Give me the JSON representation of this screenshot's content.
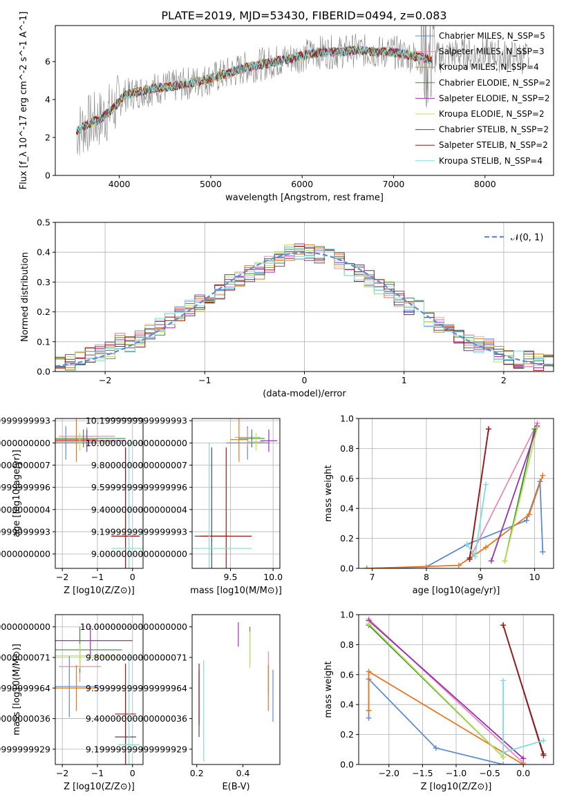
{
  "title": "PLATE=2019, MJD=53430, FIBERID=0494, z=0.083",
  "colors": {
    "chabrier_miles": "#5b8ad6",
    "salpeter_miles": "#e88ab8",
    "kroupa_miles": "#e8761f",
    "chabrier_elodie": "#3a8a3a",
    "salpeter_elodie": "#9a2fb0",
    "kroupa_elodie": "#bde05a",
    "chabrier_stelib": "#4a4a4a",
    "salpeter_stelib": "#a01818",
    "kroupa_stelib": "#7adede",
    "data": "#808080",
    "gaussian": "#5b8ad6"
  },
  "chart_data": [
    {
      "id": "spectrum",
      "type": "line",
      "xlabel": "wavelength [Angstrom, rest frame]",
      "ylabel": "Flux [f_λ 10^-17 erg cm^-2 s^-1 A^-1]",
      "xlim": [
        3300,
        8750
      ],
      "ylim": [
        0,
        7.9
      ],
      "xticks": [
        4000,
        5000,
        6000,
        7000,
        8000
      ],
      "yticks": [
        0,
        2,
        4,
        6
      ],
      "legend_position": "upper-right",
      "legend": [
        {
          "key": "chabrier_miles",
          "label": "Chabrier MILES, N_SSP=5"
        },
        {
          "key": "salpeter_miles",
          "label": "Salpeter MILES, N_SSP=3"
        },
        {
          "key": "kroupa_miles",
          "label": "Kroupa MILES, N_SSP=4"
        },
        {
          "key": "chabrier_elodie",
          "label": "Chabrier ELODIE, N_SSP=2"
        },
        {
          "key": "salpeter_elodie",
          "label": "Salpeter ELODIE, N_SSP=2"
        },
        {
          "key": "kroupa_elodie",
          "label": "Kroupa ELODIE, N_SSP=2"
        },
        {
          "key": "chabrier_stelib",
          "label": "Chabrier STELIB, N_SSP=2"
        },
        {
          "key": "salpeter_stelib",
          "label": "Salpeter STELIB, N_SSP=2"
        },
        {
          "key": "kroupa_stelib",
          "label": "Kroupa STELIB, N_SSP=4"
        }
      ],
      "continuum": [
        [
          3530,
          2.3
        ],
        [
          3650,
          2.7
        ],
        [
          3800,
          3.0
        ],
        [
          3950,
          3.6
        ],
        [
          4050,
          4.2
        ],
        [
          4200,
          4.4
        ],
        [
          4400,
          4.6
        ],
        [
          4600,
          4.7
        ],
        [
          4800,
          4.9
        ],
        [
          5000,
          5.1
        ],
        [
          5200,
          5.4
        ],
        [
          5400,
          5.7
        ],
        [
          5600,
          5.9
        ],
        [
          5800,
          6.1
        ],
        [
          6000,
          6.3
        ],
        [
          6200,
          6.5
        ],
        [
          6400,
          6.5
        ],
        [
          6600,
          6.6
        ],
        [
          6800,
          6.5
        ],
        [
          7000,
          6.5
        ],
        [
          7200,
          6.3
        ],
        [
          7420,
          6.1
        ],
        [
          7600,
          6.4
        ],
        [
          7800,
          6.4
        ],
        [
          8000,
          6.4
        ],
        [
          8200,
          6.3
        ],
        [
          8400,
          6.2
        ],
        [
          8480,
          6.2
        ]
      ]
    },
    {
      "id": "residuals",
      "type": "line",
      "xlabel": "(data-model)/error",
      "ylabel": "Normed distribution",
      "xlim": [
        -2.5,
        2.5
      ],
      "ylim": [
        0,
        0.5
      ],
      "xticks": [
        -2,
        -1,
        0,
        1,
        2
      ],
      "yticks": [
        0.0,
        0.1,
        0.2,
        0.3,
        0.4,
        0.5
      ],
      "grid": true,
      "legend_position": "upper-right",
      "legend": [
        {
          "key": "gaussian",
          "label": "𝒩(0, 1)"
        }
      ],
      "bin_width": 0.1,
      "bin_start": -2.5,
      "model_histogram": [
        0.03,
        0.03,
        0.04,
        0.06,
        0.06,
        0.07,
        0.1,
        0.09,
        0.11,
        0.13,
        0.15,
        0.17,
        0.2,
        0.21,
        0.23,
        0.25,
        0.27,
        0.3,
        0.31,
        0.33,
        0.34,
        0.36,
        0.38,
        0.4,
        0.4,
        0.4,
        0.39,
        0.39,
        0.37,
        0.35,
        0.33,
        0.31,
        0.29,
        0.27,
        0.24,
        0.22,
        0.21,
        0.18,
        0.16,
        0.14,
        0.12,
        0.1,
        0.09,
        0.08,
        0.06,
        0.05,
        0.04,
        0.04,
        0.03,
        0.03
      ]
    },
    {
      "id": "age-vs-Z",
      "type": "scatter",
      "xlabel": "Z [log10(Z/Z⊙)]",
      "ylabel": "age [log10(age/yr)]",
      "xlim": [
        -2.2,
        0.3
      ],
      "ylim": [
        8.87,
        10.22
      ],
      "xticks": [
        -2,
        -1,
        0
      ],
      "yticks": [
        9.0,
        9.2,
        9.4,
        9.6,
        9.8,
        10.0,
        10.2
      ],
      "grid": true,
      "points": [
        {
          "key": "chabrier_miles",
          "x": -1.9,
          "y": 10.0,
          "xerr": 0.9,
          "yerr": 0.15
        },
        {
          "key": "salpeter_miles",
          "x": -1.3,
          "y": 10.06,
          "xerr": 0.8,
          "yerr": 0.08
        },
        {
          "key": "kroupa_miles",
          "x": -1.6,
          "y": 10.03,
          "xerr": 0.6,
          "yerr": 0.2
        },
        {
          "key": "chabrier_elodie",
          "x": -1.4,
          "y": 10.04,
          "xerr": 1.2,
          "yerr": 0.08
        },
        {
          "key": "salpeter_elodie",
          "x": -1.3,
          "y": 10.02,
          "xerr": 1.1,
          "yerr": 0.1
        },
        {
          "key": "kroupa_elodie",
          "x": -1.5,
          "y": 10.01,
          "xerr": 1.0,
          "yerr": 0.08
        },
        {
          "key": "chabrier_stelib",
          "x": -0.2,
          "y": 9.16,
          "xerr": 0.4,
          "yerr": 0.8
        },
        {
          "key": "salpeter_stelib",
          "x": -0.2,
          "y": 9.16,
          "xerr": 0.4,
          "yerr": 0.8
        },
        {
          "key": "kroupa_stelib",
          "x": -0.1,
          "y": 9.05,
          "xerr": 0.5,
          "yerr": 0.95
        }
      ]
    },
    {
      "id": "age-vs-mass",
      "type": "scatter",
      "xlabel": "mass [log10(M/M⊙)]",
      "ylabel": "",
      "xlim": [
        9.05,
        10.08
      ],
      "ylim": [
        8.87,
        10.22
      ],
      "xticks": [
        9.5,
        10.0
      ],
      "yticks": [
        9.0,
        9.2,
        9.4,
        9.6,
        9.8,
        10.0,
        10.2
      ],
      "grid": true,
      "points": [
        {
          "key": "chabrier_miles",
          "x": 9.7,
          "y": 10.0,
          "xerr": 0.25,
          "yerr": 0.15
        },
        {
          "key": "salpeter_miles",
          "x": 9.7,
          "y": 10.05,
          "xerr": 0.15,
          "yerr": 0.08
        },
        {
          "key": "kroupa_miles",
          "x": 9.6,
          "y": 10.03,
          "xerr": 0.1,
          "yerr": 0.2
        },
        {
          "key": "chabrier_elodie",
          "x": 9.75,
          "y": 10.04,
          "xerr": 0.15,
          "yerr": 0.08
        },
        {
          "key": "salpeter_elodie",
          "x": 9.95,
          "y": 10.02,
          "xerr": 0.1,
          "yerr": 0.1
        },
        {
          "key": "kroupa_elodie",
          "x": 9.8,
          "y": 10.01,
          "xerr": 0.1,
          "yerr": 0.08
        },
        {
          "key": "chabrier_stelib",
          "x": 9.28,
          "y": 9.16,
          "xerr": 0.2,
          "yerr": 0.8
        },
        {
          "key": "salpeter_stelib",
          "x": 9.45,
          "y": 9.16,
          "xerr": 0.3,
          "yerr": 0.8
        },
        {
          "key": "kroupa_stelib",
          "x": 9.25,
          "y": 9.05,
          "xerr": 0.5,
          "yerr": 0.95
        }
      ]
    },
    {
      "id": "massweight-vs-age",
      "type": "line",
      "xlabel": "age [log10(age/yr)]",
      "ylabel": "mass weight",
      "xlim": [
        6.75,
        10.35
      ],
      "ylim": [
        0,
        1
      ],
      "xticks": [
        7,
        8,
        9,
        10
      ],
      "yticks": [
        0.0,
        0.2,
        0.4,
        0.6,
        0.8,
        1.0
      ],
      "grid": true,
      "series": [
        {
          "key": "chabrier_miles",
          "x": [
            6.9,
            8.0,
            8.75,
            9.85,
            10.1,
            10.15
          ],
          "y": [
            0.0,
            0.01,
            0.16,
            0.32,
            0.58,
            0.11
          ]
        },
        {
          "key": "salpeter_miles",
          "x": [
            8.85,
            10.05
          ],
          "y": [
            0.1,
            0.97
          ]
        },
        {
          "key": "kroupa_miles",
          "x": [
            6.9,
            8.6,
            9.1,
            9.9,
            10.15
          ],
          "y": [
            0.0,
            0.02,
            0.14,
            0.36,
            0.62
          ]
        },
        {
          "key": "chabrier_elodie",
          "x": [
            9.45,
            10.0
          ],
          "y": [
            0.05,
            0.93
          ]
        },
        {
          "key": "salpeter_elodie",
          "x": [
            9.2,
            10.05
          ],
          "y": [
            0.05,
            0.95
          ]
        },
        {
          "key": "kroupa_elodie",
          "x": [
            9.45,
            10.05
          ],
          "y": [
            0.05,
            0.94
          ]
        },
        {
          "key": "chabrier_stelib",
          "x": [
            8.8,
            9.15
          ],
          "y": [
            0.07,
            0.93
          ]
        },
        {
          "key": "salpeter_stelib",
          "x": [
            8.8,
            9.15
          ],
          "y": [
            0.06,
            0.93
          ]
        },
        {
          "key": "kroupa_stelib",
          "x": [
            8.75,
            8.9,
            9.1
          ],
          "y": [
            0.16,
            0.08,
            0.56
          ]
        }
      ]
    },
    {
      "id": "mass-vs-Z",
      "type": "scatter",
      "xlabel": "Z [log10(Z/Z⊙)]",
      "ylabel": "mass [log10(M/M⊙)]",
      "xlim": [
        -2.2,
        0.3
      ],
      "ylim": [
        9.1,
        10.08
      ],
      "xticks": [
        -2,
        -1,
        0
      ],
      "yticks": [
        9.2,
        9.4,
        9.6,
        9.8,
        10.0
      ],
      "grid": true,
      "points": [
        {
          "key": "chabrier_miles",
          "x": -1.8,
          "y": 9.61,
          "xerr": 0.9,
          "yerr": 0.2
        },
        {
          "key": "salpeter_miles",
          "x": -1.5,
          "y": 9.74,
          "xerr": 0.6,
          "yerr": 0.1
        },
        {
          "key": "kroupa_miles",
          "x": -1.6,
          "y": 9.6,
          "xerr": 0.6,
          "yerr": 0.15
        },
        {
          "key": "chabrier_elodie",
          "x": -1.5,
          "y": 9.85,
          "xerr": 1.2,
          "yerr": 0.15
        },
        {
          "key": "salpeter_elodie",
          "x": -1.2,
          "y": 9.91,
          "xerr": 1.2,
          "yerr": 0.1
        },
        {
          "key": "kroupa_elodie",
          "x": -1.5,
          "y": 9.81,
          "xerr": 1.0,
          "yerr": 0.08
        },
        {
          "key": "chabrier_stelib",
          "x": -0.2,
          "y": 9.28,
          "xerr": 0.3,
          "yerr": 0.3
        },
        {
          "key": "salpeter_stelib",
          "x": -0.2,
          "y": 9.43,
          "xerr": 0.3,
          "yerr": 0.33
        },
        {
          "key": "kroupa_stelib",
          "x": -0.1,
          "y": 9.23,
          "xerr": 0.3,
          "yerr": 0.6
        }
      ]
    },
    {
      "id": "mass-vs-ebv",
      "type": "scatter",
      "xlabel": "E(B-V)",
      "ylabel": "",
      "xlim": [
        0.18,
        0.56
      ],
      "ylim": [
        9.1,
        10.08
      ],
      "xticks": [
        0.2,
        0.4
      ],
      "yticks": [
        9.2,
        9.4,
        9.6,
        9.8,
        10.0
      ],
      "grid": false,
      "points": [
        {
          "key": "chabrier_miles",
          "x": 0.53,
          "y": 9.55,
          "xerr": 0,
          "yerr": 0.17
        },
        {
          "key": "salpeter_miles",
          "x": 0.51,
          "y": 9.7,
          "xerr": 0,
          "yerr": 0.14
        },
        {
          "key": "kroupa_miles",
          "x": 0.51,
          "y": 9.6,
          "xerr": 0,
          "yerr": 0.15
        },
        {
          "key": "chabrier_elodie",
          "x": 0.43,
          "y": 9.88,
          "xerr": 0,
          "yerr": 0.12
        },
        {
          "key": "salpeter_elodie",
          "x": 0.38,
          "y": 9.95,
          "xerr": 0,
          "yerr": 0.08
        },
        {
          "key": "kroupa_elodie",
          "x": 0.43,
          "y": 9.85,
          "xerr": 0,
          "yerr": 0.12
        },
        {
          "key": "chabrier_stelib",
          "x": 0.21,
          "y": 9.5,
          "xerr": 0,
          "yerr": 0.22
        },
        {
          "key": "salpeter_stelib",
          "x": 0.21,
          "y": 9.56,
          "xerr": 0,
          "yerr": 0.2
        },
        {
          "key": "kroupa_stelib",
          "x": 0.23,
          "y": 9.45,
          "xerr": 0,
          "yerr": 0.33
        }
      ]
    },
    {
      "id": "massweight-vs-Z",
      "type": "line",
      "xlabel": "Z [log10(Z/Z⊙)]",
      "ylabel": "mass weight",
      "xlim": [
        -2.45,
        0.45
      ],
      "ylim": [
        0,
        1
      ],
      "xticks": [
        -2.0,
        -1.5,
        -1.0,
        -0.5,
        0.0
      ],
      "yticks": [
        0.0,
        0.2,
        0.4,
        0.6,
        0.8,
        1.0
      ],
      "grid": true,
      "series": [
        {
          "key": "chabrier_miles",
          "x": [
            -2.3,
            -2.3,
            -1.3,
            -0.3,
            0.0
          ],
          "y": [
            0.31,
            0.57,
            0.11,
            0.0,
            0.0
          ]
        },
        {
          "key": "salpeter_miles",
          "x": [
            -2.3,
            0.0
          ],
          "y": [
            0.97,
            0.01
          ]
        },
        {
          "key": "kroupa_miles",
          "x": [
            -2.3,
            -2.3,
            0.0
          ],
          "y": [
            0.36,
            0.62,
            0.0
          ]
        },
        {
          "key": "chabrier_elodie",
          "x": [
            -2.3,
            -0.3
          ],
          "y": [
            0.93,
            0.05
          ]
        },
        {
          "key": "salpeter_elodie",
          "x": [
            -2.3,
            0.0
          ],
          "y": [
            0.96,
            0.04
          ]
        },
        {
          "key": "kroupa_elodie",
          "x": [
            -2.3,
            -0.3
          ],
          "y": [
            0.94,
            0.05
          ]
        },
        {
          "key": "chabrier_stelib",
          "x": [
            -0.3,
            0.3
          ],
          "y": [
            0.93,
            0.07
          ]
        },
        {
          "key": "salpeter_stelib",
          "x": [
            -0.3,
            0.3
          ],
          "y": [
            0.93,
            0.06
          ]
        },
        {
          "key": "kroupa_stelib",
          "x": [
            -0.3,
            -0.3,
            0.3
          ],
          "y": [
            0.56,
            0.08,
            0.16
          ]
        }
      ]
    }
  ]
}
